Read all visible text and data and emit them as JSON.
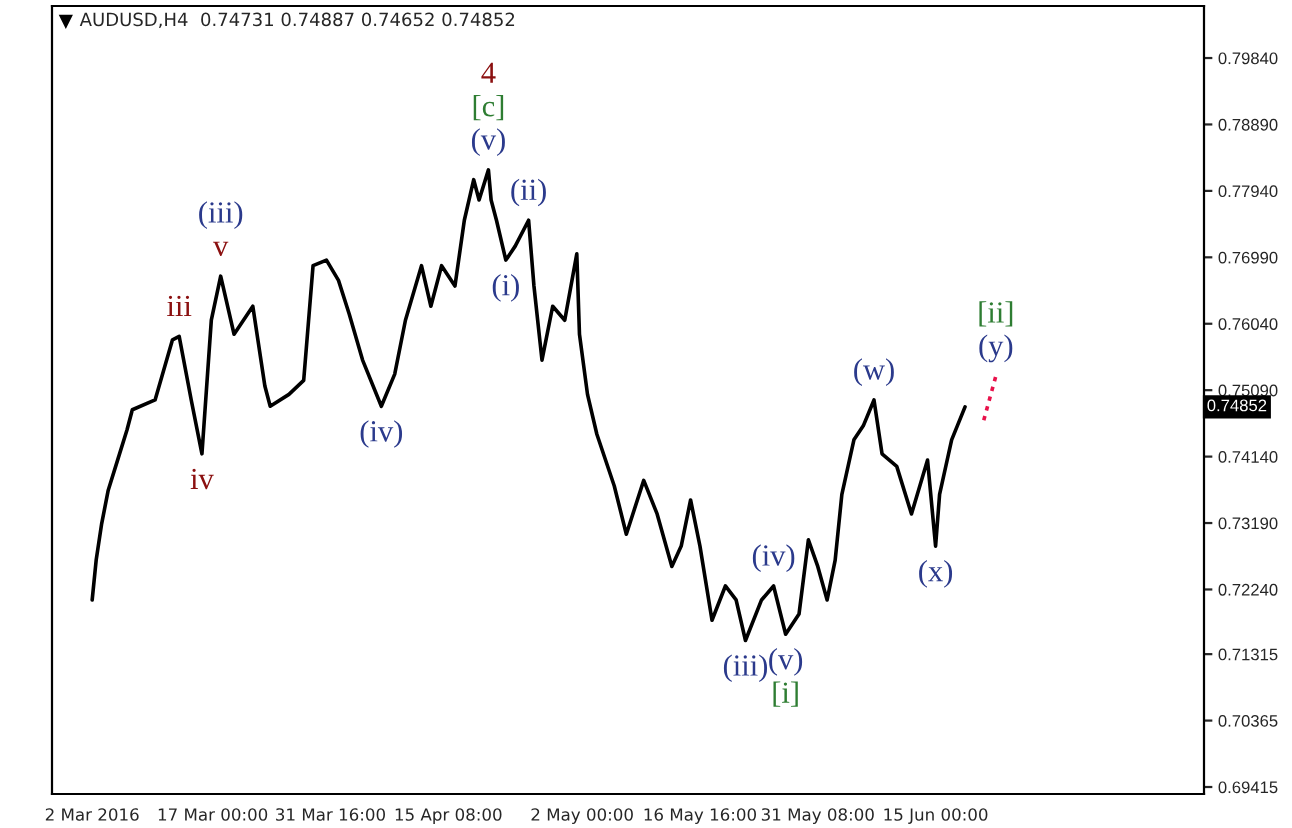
{
  "chart_data": {
    "type": "line",
    "title": "AUDUSD,H4  0.74731 0.74887 0.74652 0.74852",
    "xlim": [
      "2016-02-26T00:00",
      "2016-07-18T10:00"
    ],
    "xticks": [
      {
        "value": "2016-03-02T00:00",
        "label": "2 Mar 2016"
      },
      {
        "value": "2016-03-17T00:00",
        "label": "17 Mar 00:00"
      },
      {
        "value": "2016-03-31T16:00",
        "label": "31 Mar 16:00"
      },
      {
        "value": "2016-04-15T08:00",
        "label": "15 Apr 08:00"
      },
      {
        "value": "2016-05-02T00:00",
        "label": "2 May 00:00"
      },
      {
        "value": "2016-05-16T16:00",
        "label": "16 May 16:00"
      },
      {
        "value": "2016-05-31T08:00",
        "label": "31 May 08:00"
      },
      {
        "value": "2016-06-15T00:00",
        "label": "15 Jun 00:00"
      }
    ],
    "ylim": [
      0.69315,
      0.80584
    ],
    "yticks": [
      {
        "value": 0.69415,
        "label": "0.69415"
      },
      {
        "value": 0.70365,
        "label": "0.70365"
      },
      {
        "value": 0.71315,
        "label": "0.71315"
      },
      {
        "value": 0.7224,
        "label": "0.72240"
      },
      {
        "value": 0.7319,
        "label": "0.73190"
      },
      {
        "value": 0.7414,
        "label": "0.74140"
      },
      {
        "value": 0.7509,
        "label": "0.75090"
      },
      {
        "value": 0.7604,
        "label": "0.76040"
      },
      {
        "value": 0.7699,
        "label": "0.76990"
      },
      {
        "value": 0.7794,
        "label": "0.77940"
      },
      {
        "value": 0.7889,
        "label": "0.78890"
      },
      {
        "value": 0.7984,
        "label": "0.79840"
      }
    ],
    "grid": false,
    "legend": false,
    "series": [
      {
        "color": "#000000",
        "line_style": "solid",
        "x": [
          "2016-03-02T00:00",
          "2016-03-02T12:00",
          "2016-03-03T04:00",
          "2016-03-04T00:00",
          "2016-03-05T04:00",
          "2016-03-06T08:00",
          "2016-03-07T00:00",
          "2016-03-09T20:00",
          "2016-03-12T00:00",
          "2016-03-12T20:00",
          "2016-03-14T08:00",
          "2016-03-15T16:00",
          "2016-03-16T20:00",
          "2016-03-18T00:00",
          "2016-03-19T16:00",
          "2016-03-22T00:00",
          "2016-03-23T12:00",
          "2016-03-24T04:00",
          "2016-03-26T12:00",
          "2016-03-28T08:00",
          "2016-03-29T12:00",
          "2016-03-31T04:00",
          "2016-04-01T16:00",
          "2016-04-03T00:00",
          "2016-04-04T16:00",
          "2016-04-07T00:00",
          "2016-04-08T16:00",
          "2016-04-10T00:00",
          "2016-04-12T00:00",
          "2016-04-13T04:00",
          "2016-04-14T12:00",
          "2016-04-16T04:00",
          "2016-04-17T08:00",
          "2016-04-18T12:00",
          "2016-04-19T04:00",
          "2016-04-20T08:00",
          "2016-04-20T16:00",
          "2016-04-21T08:00",
          "2016-04-22T12:00",
          "2016-04-23T16:00",
          "2016-04-25T08:00",
          "2016-04-26T00:00",
          "2016-04-27T00:00",
          "2016-04-28T08:00",
          "2016-04-29T20:00",
          "2016-05-01T08:00",
          "2016-05-01T16:00",
          "2016-05-02T16:00",
          "2016-05-03T20:00",
          "2016-05-06T00:00",
          "2016-05-07T12:00",
          "2016-05-09T16:00",
          "2016-05-11T08:00",
          "2016-05-13T04:00",
          "2016-05-14T08:00",
          "2016-05-15T12:00",
          "2016-05-16T16:00",
          "2016-05-18T04:00",
          "2016-05-19T20:00",
          "2016-05-21T04:00",
          "2016-05-22T08:00",
          "2016-05-24T08:00",
          "2016-05-25T20:00",
          "2016-05-27T08:00",
          "2016-05-29T00:00",
          "2016-05-30T04:00",
          "2016-05-31T08:00",
          "2016-06-01T12:00",
          "2016-06-02T12:00",
          "2016-06-03T08:00",
          "2016-06-04T20:00",
          "2016-06-06T00:00",
          "2016-06-07T08:00",
          "2016-06-08T08:00",
          "2016-06-10T04:00",
          "2016-06-12T00:00",
          "2016-06-14T00:00",
          "2016-06-15T00:00",
          "2016-06-15T12:00",
          "2016-06-17T00:00",
          "2016-06-18T16:00"
        ],
        "values": [
          0.7209,
          0.7266,
          0.7317,
          0.7366,
          0.7409,
          0.7452,
          0.7481,
          0.7495,
          0.7581,
          0.7586,
          0.7495,
          0.7418,
          0.7609,
          0.7672,
          0.7589,
          0.7629,
          0.7515,
          0.7486,
          0.7503,
          0.7523,
          0.7687,
          0.7695,
          0.7666,
          0.7618,
          0.7552,
          0.7486,
          0.7532,
          0.7609,
          0.7687,
          0.7629,
          0.7687,
          0.7658,
          0.7752,
          0.781,
          0.7781,
          0.7824,
          0.7781,
          0.7752,
          0.7695,
          0.7715,
          0.7752,
          0.7658,
          0.7552,
          0.7629,
          0.7609,
          0.7704,
          0.7589,
          0.7503,
          0.7446,
          0.7372,
          0.7303,
          0.738,
          0.7332,
          0.7257,
          0.7286,
          0.7352,
          0.7286,
          0.718,
          0.7229,
          0.7209,
          0.7151,
          0.7209,
          0.7229,
          0.716,
          0.7189,
          0.7295,
          0.7257,
          0.7209,
          0.7266,
          0.736,
          0.7438,
          0.7458,
          0.7495,
          0.7418,
          0.74,
          0.7332,
          0.7409,
          0.7286,
          0.736,
          0.7438,
          0.74852
        ]
      },
      {
        "color": "#e8114a",
        "line_style": "dotted",
        "x": [
          "2016-06-21T00:00",
          "2016-06-22T12:00"
        ],
        "values": [
          0.7466,
          0.7529
        ]
      }
    ],
    "annotations": [
      {
        "text": "4",
        "x": "2016-04-20T08:00",
        "y": 0.7824
      },
      {
        "text": "[c]",
        "x": "2016-04-20T08:00",
        "y": 0.7824
      },
      {
        "text": "(v)",
        "x": "2016-04-20T08:00",
        "y": 0.7824
      },
      {
        "text": "(iii)",
        "x": "2016-03-18T00:00",
        "y": 0.7672
      },
      {
        "text": "v",
        "x": "2016-03-18T00:00",
        "y": 0.7672
      },
      {
        "text": "iii",
        "x": "2016-03-12T20:00",
        "y": 0.7586
      },
      {
        "text": "iv",
        "x": "2016-03-15T16:00",
        "y": 0.7418
      },
      {
        "text": "(ii)",
        "x": "2016-04-25T08:00",
        "y": 0.7752
      },
      {
        "text": "(i)",
        "x": "2016-04-22T12:00",
        "y": 0.7695
      },
      {
        "text": "(iv)",
        "x": "2016-04-07T00:00",
        "y": 0.7486
      },
      {
        "text": "(iv)",
        "x": "2016-05-25T20:00",
        "y": 0.7229
      },
      {
        "text": "(iii)",
        "x": "2016-05-22T08:00",
        "y": 0.7151
      },
      {
        "text": "(v)",
        "x": "2016-05-27T08:00",
        "y": 0.716
      },
      {
        "text": "[i]",
        "x": "2016-05-27T08:00",
        "y": 0.716
      },
      {
        "text": "(w)",
        "x": "2016-06-07T08:00",
        "y": 0.7495
      },
      {
        "text": "(x)",
        "x": "2016-06-15T00:00",
        "y": 0.7286
      },
      {
        "text": "[ii]",
        "x": "2016-06-22T12:00",
        "y": 0.7529
      },
      {
        "text": "(y)",
        "x": "2016-06-22T12:00",
        "y": 0.7529
      },
      "0.74852"
    ]
  }
}
